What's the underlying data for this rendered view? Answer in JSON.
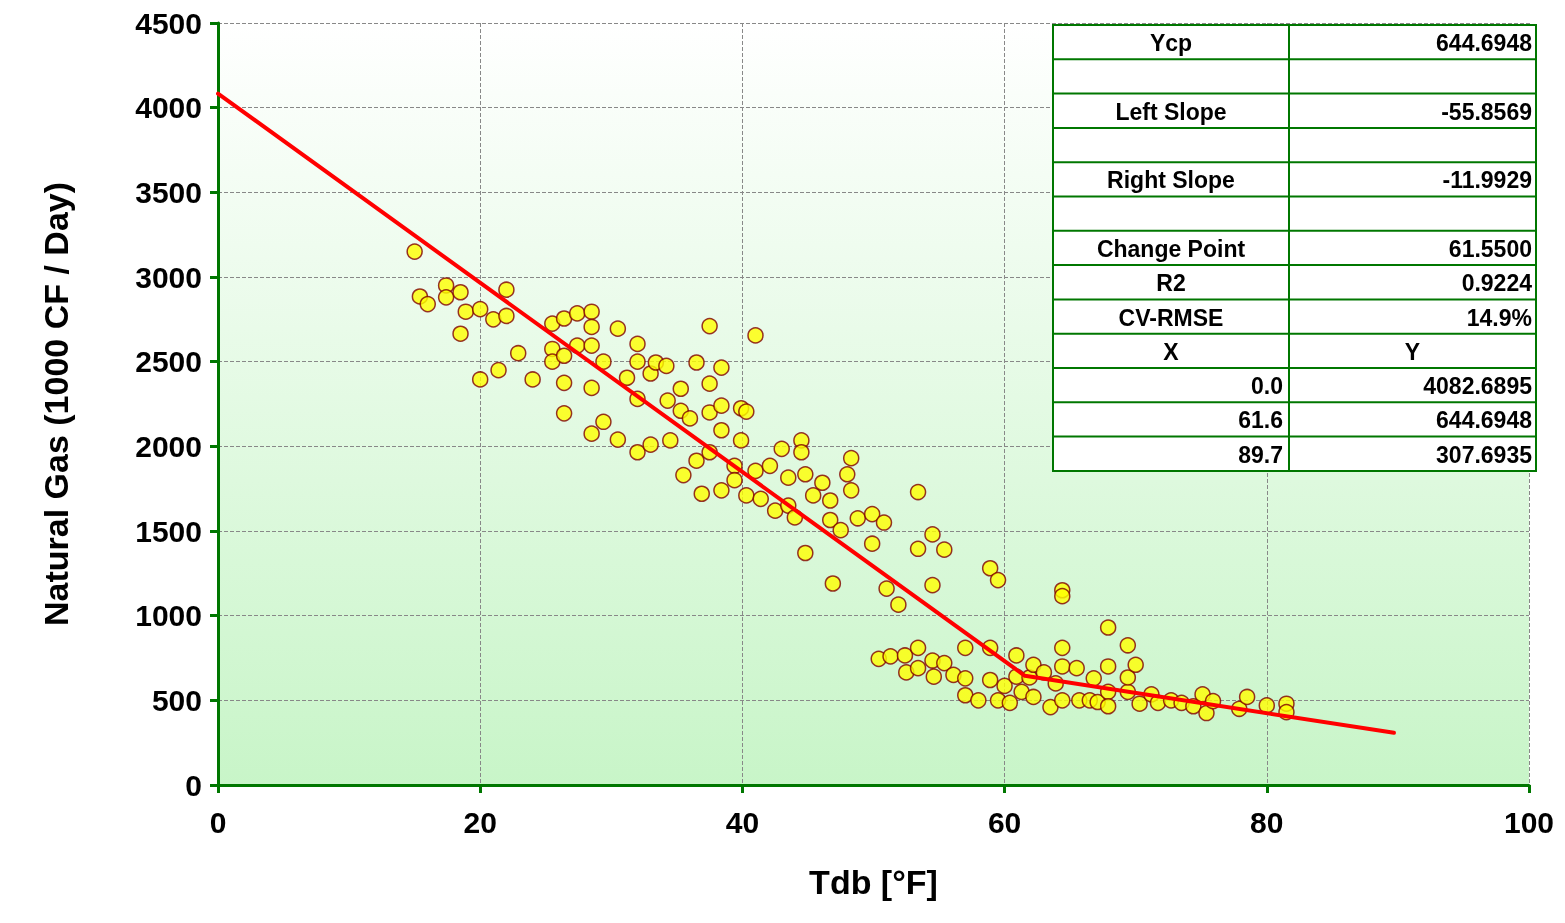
{
  "chart_data": {
    "type": "scatter",
    "xlabel": "Tdb [°F]",
    "ylabel": "Natural Gas (1000 CF / Day)",
    "xlim": [
      0,
      100
    ],
    "xticks": [
      0,
      20,
      40,
      60,
      80,
      100
    ],
    "ylim": [
      0,
      4500
    ],
    "yticks": [
      0,
      500,
      1000,
      1500,
      2000,
      2500,
      3000,
      3500,
      4000,
      4500
    ],
    "grid": true,
    "marker": "circle",
    "series": [
      {
        "color": "#ffff00",
        "x": [
          15.0,
          15.4,
          16.0,
          17.4,
          17.4,
          18.5,
          18.5,
          18.9,
          20.0,
          20.0,
          21.0,
          21.4,
          22.0,
          22.0,
          22.9,
          24.0,
          25.5,
          25.5,
          25.5,
          26.4,
          26.4,
          26.4,
          26.4,
          27.4,
          27.4,
          28.5,
          28.5,
          28.5,
          28.5,
          28.5,
          29.4,
          29.4,
          30.5,
          30.5,
          31.2,
          32.0,
          32.0,
          32.0,
          32.0,
          33.0,
          33.0,
          33.4,
          34.2,
          34.3,
          34.5,
          35.3,
          35.3,
          35.5,
          36.0,
          36.5,
          36.5,
          36.9,
          37.5,
          37.5,
          37.5,
          37.5,
          38.4,
          38.4,
          38.4,
          38.4,
          39.4,
          39.4,
          39.9,
          39.9,
          40.3,
          40.3,
          41.0,
          41.0,
          41.4,
          42.1,
          42.5,
          43.0,
          43.5,
          43.5,
          44.0,
          44.5,
          44.5,
          44.8,
          44.8,
          45.4,
          46.1,
          46.7,
          46.7,
          46.9,
          47.5,
          48.0,
          48.3,
          48.3,
          48.8,
          49.9,
          49.9,
          50.8,
          51.0,
          51.9,
          53.4,
          53.4,
          54.5,
          54.5,
          55.4,
          58.9,
          59.5,
          64.4,
          64.4,
          67.9,
          69.4,
          50.4,
          51.3,
          52.4,
          52.5,
          53.4,
          53.4,
          54.5,
          54.6,
          55.4,
          56.1,
          57.0,
          57.0,
          57.0,
          58.0,
          58.9,
          58.9,
          59.5,
          60.0,
          60.4,
          60.9,
          60.9,
          61.3,
          61.9,
          62.2,
          62.2,
          63.0,
          63.5,
          63.9,
          64.4,
          64.4,
          64.4,
          65.5,
          65.7,
          66.5,
          66.8,
          67.1,
          67.9,
          67.9,
          67.9,
          69.4,
          69.4,
          70.0,
          70.3,
          71.2,
          71.7,
          72.7,
          73.5,
          74.4,
          75.1,
          75.4,
          75.9,
          77.9,
          78.5,
          80.0,
          81.5,
          81.5
        ],
        "values": [
          3150,
          2885,
          2840,
          2950,
          2880,
          2910,
          2665,
          2795,
          2810,
          2395,
          2750,
          2450,
          2925,
          2770,
          2550,
          2395,
          2725,
          2575,
          2500,
          2195,
          2375,
          2535,
          2755,
          2785,
          2595,
          2795,
          2705,
          2595,
          2345,
          2075,
          2500,
          2145,
          2695,
          2040,
          2405,
          2605,
          2500,
          2280,
          1965,
          2430,
          2010,
          2495,
          2475,
          2270,
          2035,
          2340,
          2210,
          1830,
          2165,
          2495,
          1915,
          1720,
          2710,
          2200,
          2370,
          1965,
          2465,
          2240,
          2095,
          1740,
          1885,
          1800,
          2225,
          2035,
          2205,
          1710,
          2655,
          1855,
          1690,
          1885,
          1620,
          1985,
          1815,
          1650,
          1580,
          2035,
          1965,
          1835,
          1370,
          1710,
          1785,
          1680,
          1565,
          1190,
          1505,
          1835,
          1930,
          1740,
          1575,
          1600,
          1425,
          1550,
          1160,
          1065,
          1730,
          1395,
          1480,
          1180,
          1390,
          1280,
          1210,
          1150,
          1115,
          930,
          825,
          745,
          760,
          765,
          665,
          810,
          690,
          735,
          640,
          720,
          650,
          810,
          630,
          530,
          500,
          810,
          620,
          500,
          585,
          485,
          765,
          640,
          550,
          635,
          520,
          710,
          665,
          460,
          600,
          810,
          700,
          500,
          690,
          500,
          500,
          630,
          490,
          700,
          550,
          465,
          550,
          635,
          710,
          480,
          535,
          485,
          500,
          485,
          465,
          535,
          425,
          495,
          450,
          520,
          470,
          480,
          430
        ]
      },
      {
        "type": "line",
        "color": "#ff0000",
        "marker": "none",
        "x": [
          0,
          61.55,
          89.7
        ],
        "values": [
          4083,
          645,
          308
        ]
      }
    ],
    "annotations": [
      "Ycp",
      "644.6948",
      "Left Slope",
      "-55.8569",
      "Right Slope",
      "-11.9929",
      "Change Point",
      "61.5500",
      "R2",
      "0.9224",
      "CV-RMSE",
      "14.9%",
      "X",
      "Y",
      "0.0",
      "4082.6895",
      "61.6",
      "644.6948",
      "89.7",
      "307.6935"
    ]
  }
}
